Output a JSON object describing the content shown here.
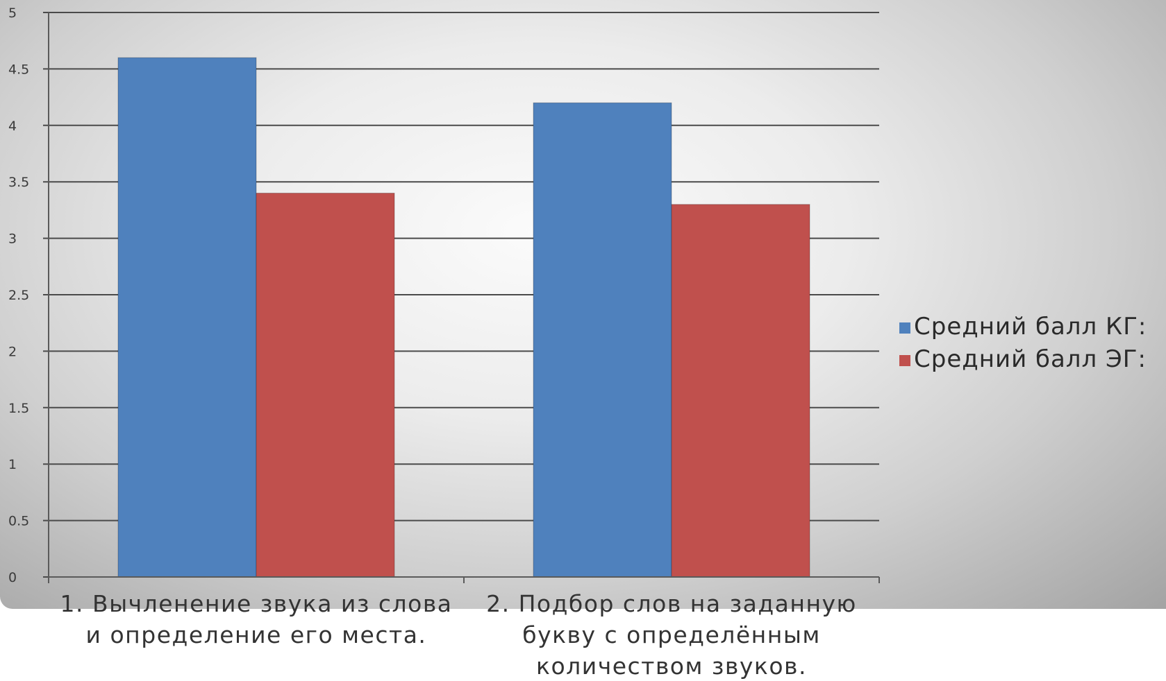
{
  "chart_data": {
    "type": "bar",
    "categories": [
      [
        "1. Вычленение звука из слова",
        "и определение его места."
      ],
      [
        "2. Подбор слов на заданную",
        "букву с определённым",
        "количеством звуков."
      ]
    ],
    "series": [
      {
        "name": "Средний балл КГ:",
        "values": [
          4.6,
          4.2
        ],
        "color": "#4f81bd"
      },
      {
        "name": "Средний балл ЭГ:",
        "values": [
          3.4,
          3.3
        ],
        "color": "#c0504d"
      }
    ],
    "y_ticks": [
      "0",
      "0.5",
      "1",
      "1.5",
      "2",
      "2.5",
      "3",
      "3.5",
      "4",
      "4.5",
      "5"
    ],
    "ylim": [
      0,
      5
    ],
    "grid": true,
    "legend_position": "right"
  }
}
